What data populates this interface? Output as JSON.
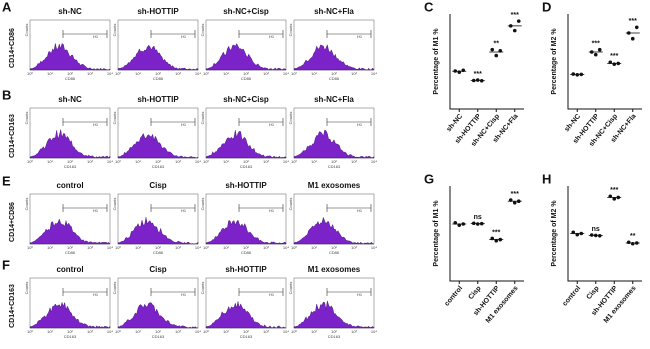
{
  "flow_panels": {
    "counts_label": "Counts",
    "gate_label": "H1",
    "xtick_labels": [
      "10⁰",
      "10¹",
      "10²",
      "10³",
      "10⁴"
    ],
    "rows": [
      {
        "letter": "A",
        "ylabel": "CD14+CD86",
        "xlabel": "CD86",
        "titles": [
          "sh-NC",
          "sh-HOTTIP",
          "sh-NC+Cisp",
          "sh-NC+Fla"
        ]
      },
      {
        "letter": "B",
        "ylabel": "CD14+CD163",
        "xlabel": "CD163",
        "titles": [
          "sh-NC",
          "sh-HOTTIP",
          "sh-NC+Cisp",
          "sh-NC+Fla"
        ]
      },
      {
        "letter": "E",
        "ylabel": "CD14+CD86",
        "xlabel": "CD86",
        "titles": [
          "control",
          "Cisp",
          "sh-HOTTIP",
          "M1 exosomes"
        ]
      },
      {
        "letter": "F",
        "ylabel": "CD14+CD163",
        "xlabel": "CD163",
        "titles": [
          "control",
          "Cisp",
          "sh-HOTTIP",
          "M1 exosomes"
        ]
      }
    ]
  },
  "chart_data": [
    {
      "type": "dot",
      "letter": "C",
      "ylabel": "Percentage of M1 %",
      "categories": [
        "sh-NC",
        "sh-HOTTIP",
        "sh-NC+Cisp",
        "sh-NC+Fla"
      ],
      "values": [
        [
          16,
          15.5,
          16.3
        ],
        [
          12,
          12.2,
          11.9
        ],
        [
          25,
          22.5,
          24.5
        ],
        [
          35,
          33,
          37
        ]
      ],
      "means": [
        15.9,
        12,
        24,
        35
      ],
      "annotations": [
        {
          "index": 1,
          "text": "***"
        },
        {
          "index": 2,
          "text": "**"
        },
        {
          "index": 3,
          "text": "***"
        }
      ],
      "ylim": [
        0,
        40
      ],
      "color": "#111111"
    },
    {
      "type": "dot",
      "letter": "D",
      "ylabel": "Percentage of M2 %",
      "categories": [
        "sh-NC",
        "sh-HOTTIP",
        "sh-NC+Cisp",
        "sh-NC+Fla"
      ],
      "values": [
        [
          9.2,
          9,
          9.1
        ],
        [
          15,
          14.3,
          15.6
        ],
        [
          12.3,
          11.8,
          12
        ],
        [
          20,
          18.5,
          21.5
        ]
      ],
      "means": [
        9.1,
        15,
        12,
        20
      ],
      "annotations": [
        {
          "index": 1,
          "text": "***"
        },
        {
          "index": 2,
          "text": "***"
        },
        {
          "index": 3,
          "text": "***"
        }
      ],
      "ylim": [
        0,
        25
      ],
      "color": "#111111"
    },
    {
      "type": "dot",
      "letter": "G",
      "ylabel": "Percentage of M1 %",
      "categories": [
        "control",
        "Cisp",
        "sh-HOTTIP",
        "M1 exosomes"
      ],
      "values": [
        [
          15.3,
          14.7,
          15
        ],
        [
          15.2,
          15,
          15.1
        ],
        [
          11.2,
          10.6,
          10.9
        ],
        [
          21.3,
          20.6,
          21
        ]
      ],
      "means": [
        15,
        15.1,
        10.9,
        21
      ],
      "annotations": [
        {
          "index": 1,
          "text": "ns"
        },
        {
          "index": 2,
          "text": "***"
        },
        {
          "index": 3,
          "text": "***"
        }
      ],
      "ylim": [
        0,
        25
      ],
      "color": "#111111"
    },
    {
      "type": "dot",
      "letter": "H",
      "ylabel": "Percentage of M2 %",
      "categories": [
        "control",
        "Cisp",
        "sh-HOTTIP",
        "M1 exosomes"
      ],
      "values": [
        [
          12.8,
          12.2,
          12.5
        ],
        [
          12.1,
          12,
          11.9
        ],
        [
          22.3,
          21.6,
          22
        ],
        [
          10.2,
          9.8,
          10
        ]
      ],
      "means": [
        12.5,
        12,
        22,
        10
      ],
      "annotations": [
        {
          "index": 1,
          "text": "ns"
        },
        {
          "index": 2,
          "text": "***"
        },
        {
          "index": 3,
          "text": "**"
        }
      ],
      "ylim": [
        0,
        25
      ],
      "color": "#111111"
    }
  ]
}
